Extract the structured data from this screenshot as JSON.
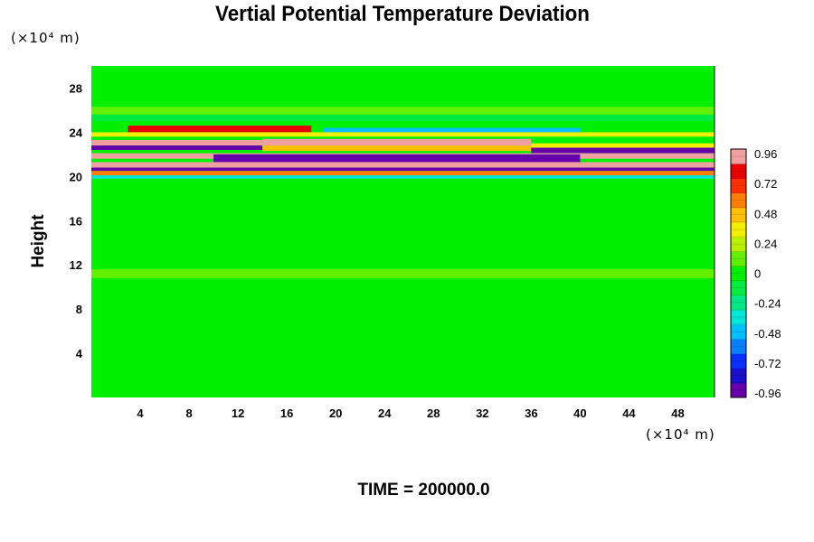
{
  "colors": {
    "background": "#00f000",
    "ramp": [
      "#6600aa",
      "#1a10cc",
      "#0a30ff",
      "#0a80ff",
      "#00c0ff",
      "#00e6d8",
      "#00e888",
      "#00ec40",
      "#00f000",
      "#60f000",
      "#b8f000",
      "#f0f000",
      "#ffc000",
      "#ff8000",
      "#ff3000",
      "#e80000",
      "#f0a0a0"
    ]
  },
  "chart_data": {
    "type": "heatmap",
    "title": "Vertial Potential Temperature Deviation",
    "xlabel": "",
    "ylabel": "Height",
    "x_unit": "(×10⁴ m)",
    "y_unit": "(×10⁴ m)",
    "annotation": "TIME = 200000.0",
    "xlim": [
      0,
      51
    ],
    "ylim": [
      0,
      30
    ],
    "x_ticks": [
      4,
      8,
      12,
      16,
      20,
      24,
      28,
      32,
      36,
      40,
      44,
      48
    ],
    "y_ticks": [
      4,
      8,
      12,
      16,
      20,
      24,
      28
    ],
    "colorbar": {
      "range": [
        -0.96,
        0.96
      ],
      "ticks": [
        "0.96",
        "0.72",
        "0.48",
        "0.24",
        "0",
        "-0.24",
        "-0.48",
        "-0.72",
        "-0.96"
      ]
    },
    "bands": [
      {
        "x": [
          0,
          51
        ],
        "y": [
          18.5,
          20.0
        ],
        "value": 0.05
      },
      {
        "x": [
          0,
          51
        ],
        "y": [
          25.6,
          26.3
        ],
        "value": 0.12
      },
      {
        "x": [
          0,
          51
        ],
        "y": [
          25.0,
          25.6
        ],
        "value": -0.15
      },
      {
        "x": [
          3,
          18
        ],
        "y": [
          24.0,
          24.6
        ],
        "value": 0.75
      },
      {
        "x": [
          19,
          40
        ],
        "y": [
          24.0,
          24.4
        ],
        "value": -0.45
      },
      {
        "x": [
          0,
          51
        ],
        "y": [
          23.6,
          24.0
        ],
        "value": 0.3
      },
      {
        "x": [
          0,
          14
        ],
        "y": [
          22.8,
          23.3
        ],
        "value": 0.96
      },
      {
        "x": [
          0,
          14
        ],
        "y": [
          22.4,
          22.8
        ],
        "value": -0.96
      },
      {
        "x": [
          14,
          36
        ],
        "y": [
          22.8,
          23.4
        ],
        "value": 0.85
      },
      {
        "x": [
          14,
          36
        ],
        "y": [
          22.3,
          22.8
        ],
        "value": 0.5
      },
      {
        "x": [
          36,
          51
        ],
        "y": [
          22.6,
          23.0
        ],
        "value": 0.3
      },
      {
        "x": [
          36,
          51
        ],
        "y": [
          22.1,
          22.6
        ],
        "value": -0.9
      },
      {
        "x": [
          0,
          51
        ],
        "y": [
          21.6,
          22.1
        ],
        "value": 0.96
      },
      {
        "x": [
          10,
          40
        ],
        "y": [
          21.2,
          22.0
        ],
        "value": -0.96
      },
      {
        "x": [
          0,
          51
        ],
        "y": [
          20.8,
          21.3
        ],
        "value": 0.96
      },
      {
        "x": [
          0,
          51
        ],
        "y": [
          20.5,
          20.8
        ],
        "value": -0.96
      },
      {
        "x": [
          0,
          51
        ],
        "y": [
          20.1,
          20.5
        ],
        "value": 0.6
      },
      {
        "x": [
          0,
          51
        ],
        "y": [
          19.8,
          20.1
        ],
        "value": -0.3
      },
      {
        "x": [
          0,
          51
        ],
        "y": [
          10.8,
          11.6
        ],
        "value": 0.12
      }
    ]
  }
}
